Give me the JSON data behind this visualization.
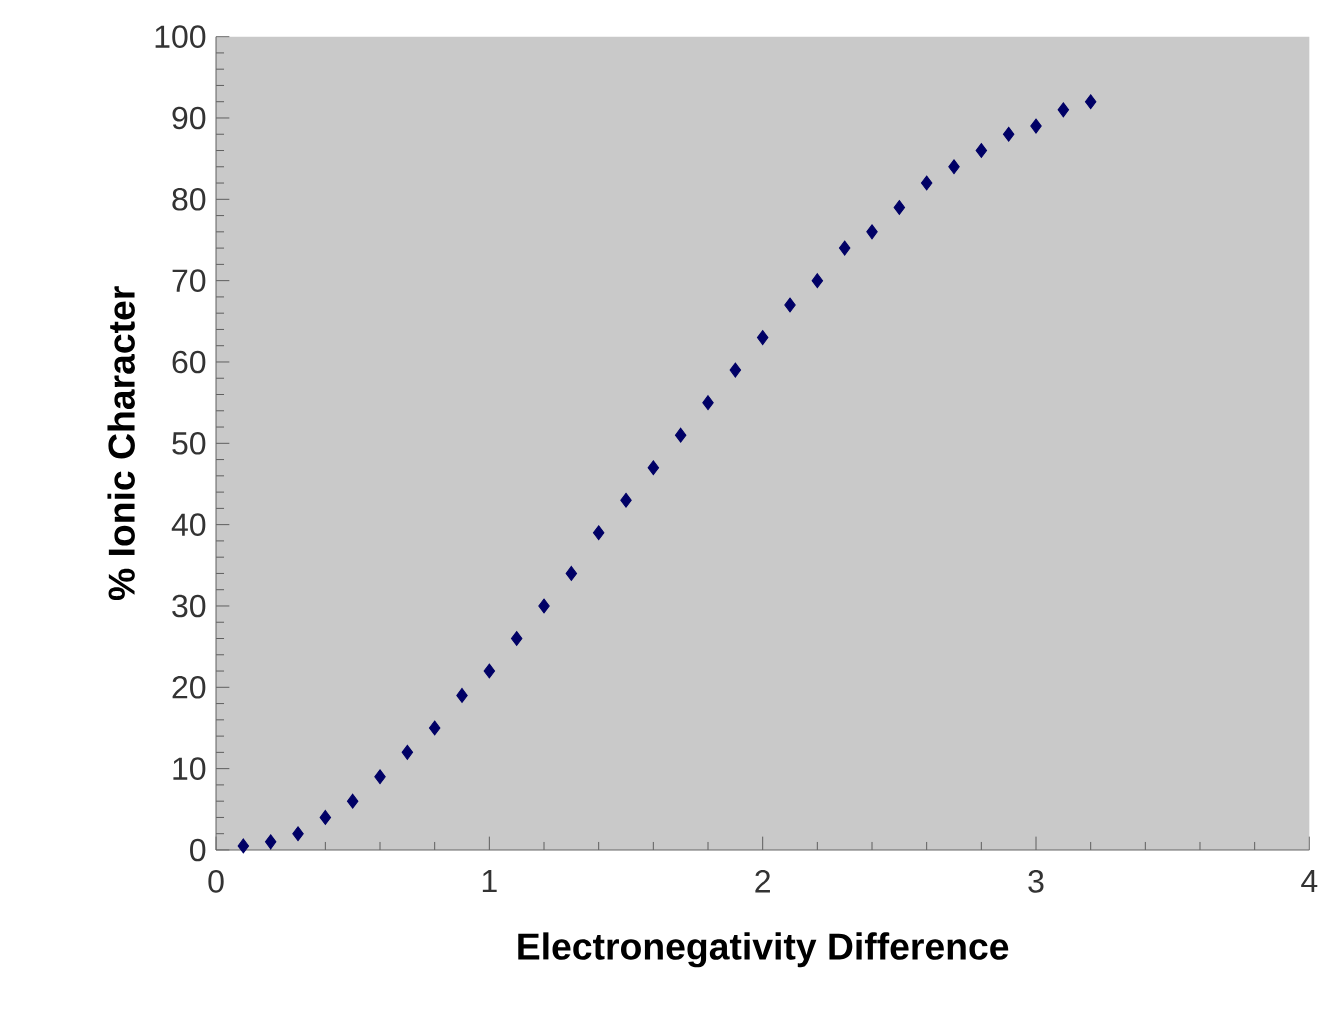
{
  "chart_data": {
    "type": "scatter",
    "xlabel": "Electronegativity Difference",
    "ylabel": "% Ionic Character",
    "x": [
      0.1,
      0.2,
      0.3,
      0.4,
      0.5,
      0.6,
      0.7,
      0.8,
      0.9,
      1.0,
      1.1,
      1.2,
      1.3,
      1.4,
      1.5,
      1.6,
      1.7,
      1.8,
      1.9,
      2.0,
      2.1,
      2.2,
      2.3,
      2.4,
      2.5,
      2.6,
      2.7,
      2.8,
      2.9,
      3.0,
      3.1,
      3.2
    ],
    "series": [
      {
        "color": "#000066",
        "values": [
          0.5,
          1,
          2,
          4,
          6,
          9,
          12,
          15,
          19,
          22,
          26,
          30,
          34,
          39,
          43,
          47,
          51,
          55,
          59,
          63,
          67,
          70,
          74,
          76,
          79,
          82,
          84,
          86,
          88,
          89,
          91,
          92
        ]
      }
    ],
    "xlim": [
      0,
      4
    ],
    "ylim": [
      0,
      100
    ],
    "xticks": [
      0,
      1,
      2,
      3,
      4
    ],
    "yticks": [
      0,
      10,
      20,
      30,
      40,
      50,
      60,
      70,
      80,
      90,
      100
    ],
    "marker": "diamond"
  }
}
